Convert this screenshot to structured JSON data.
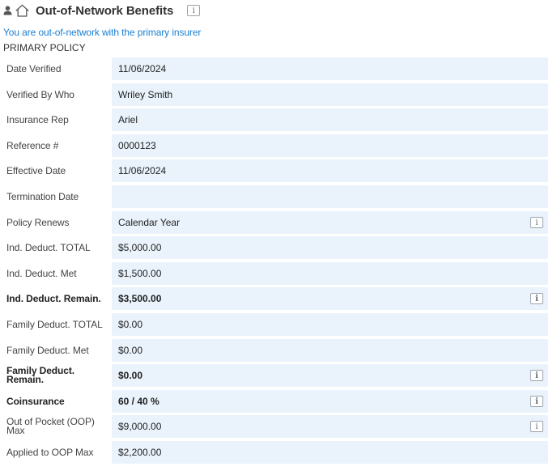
{
  "header": {
    "title": "Out-of-Network Benefits",
    "info_glyph": "i",
    "icons": [
      "user-icon",
      "home-icon",
      "info-icon"
    ]
  },
  "notice": "You are out-of-network with the primary insurer",
  "section_title": "PRIMARY POLICY",
  "colors": {
    "accent_blue": "#1b7fd1",
    "field_background": "#eaf3fc",
    "text": "#333333"
  },
  "fields": [
    {
      "label": "Date Verified",
      "value": "11/06/2024",
      "bold": false,
      "info": false
    },
    {
      "label": "Verified By Who",
      "value": "Wriley Smith",
      "bold": false,
      "info": false
    },
    {
      "label": "Insurance Rep",
      "value": "Ariel",
      "bold": false,
      "info": false
    },
    {
      "label": "Reference #",
      "value": "0000123",
      "bold": false,
      "info": false
    },
    {
      "label": "Effective Date",
      "value": "11/06/2024",
      "bold": false,
      "info": false
    },
    {
      "label": "Termination Date",
      "value": "",
      "bold": false,
      "info": false
    },
    {
      "label": "Policy Renews",
      "value": "Calendar Year",
      "bold": false,
      "info": true
    },
    {
      "label": "Ind. Deduct. TOTAL",
      "value": "$5,000.00",
      "bold": false,
      "info": false
    },
    {
      "label": "Ind. Deduct. Met",
      "value": "$1,500.00",
      "bold": false,
      "info": false
    },
    {
      "label": "Ind. Deduct. Remain.",
      "value": "$3,500.00",
      "bold": true,
      "info": true
    },
    {
      "label": "Family Deduct. TOTAL",
      "value": "$0.00",
      "bold": false,
      "info": false
    },
    {
      "label": "Family Deduct. Met",
      "value": "$0.00",
      "bold": false,
      "info": false
    },
    {
      "label": "Family Deduct. Remain.",
      "value": "$0.00",
      "bold": true,
      "info": true
    },
    {
      "label": "Coinsurance",
      "value": "60 / 40 %",
      "bold": true,
      "info": true
    },
    {
      "label": "Out of Pocket (OOP) Max",
      "value": "$9,000.00",
      "bold": false,
      "info": true
    },
    {
      "label": "Applied to OOP Max",
      "value": "$2,200.00",
      "bold": false,
      "info": false
    }
  ]
}
